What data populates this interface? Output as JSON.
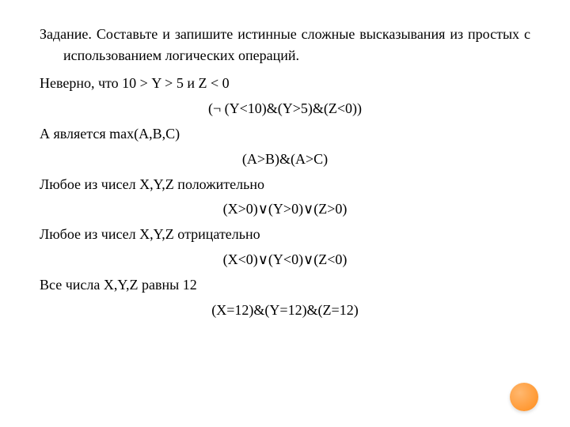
{
  "task_intro": "Задание. Составьте и запишите истинные сложные высказывания из простых с использованием логических операций.",
  "lines": [
    {
      "type": "left",
      "text": "Неверно, что 10 > Y > 5 и Z < 0"
    },
    {
      "type": "center",
      "text": "(¬ (Y<10)&(Y>5)&(Z<0))"
    },
    {
      "type": "left",
      "text": "А является max(A,B,C)"
    },
    {
      "type": "center",
      "text": "(A>B)&(A>C)"
    },
    {
      "type": "left",
      "text": "Любое из чисел X,Y,Z положительно"
    },
    {
      "type": "center",
      "text": "(X>0)∨(Y>0)∨(Z>0)"
    },
    {
      "type": "left",
      "text": "Любое из чисел X,Y,Z отрицательно"
    },
    {
      "type": "center",
      "text": "(X<0)∨(Y<0)∨(Z<0)"
    },
    {
      "type": "left",
      "text": "Все числа X,Y,Z равны 12"
    },
    {
      "type": "center",
      "text": "(X=12)&(Y=12)&(Z=12)"
    }
  ],
  "styles": {
    "font_size_pt": 18,
    "font_family": "Times New Roman",
    "text_color": "#000000",
    "background_color": "#ffffff",
    "accent_circle_color_inner": "#ffb870",
    "accent_circle_color_outer": "#ff8c1a"
  }
}
